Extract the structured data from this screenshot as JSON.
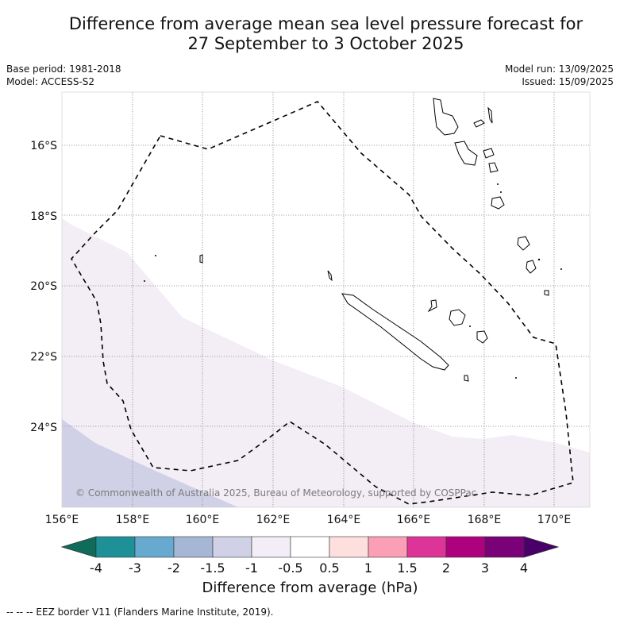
{
  "title": {
    "line1": "Difference from average mean sea level pressure forecast for",
    "line2": "27 September to 3 October 2025"
  },
  "meta": {
    "base_period": "Base period: 1981-2018",
    "model": "Model: ACCESS-S2",
    "model_run": "Model run: 13/09/2025",
    "issued": "Issued: 15/09/2025"
  },
  "map": {
    "lat_labels": [
      "16°S",
      "18°S",
      "20°S",
      "22°S",
      "24°S"
    ],
    "lon_labels": [
      "156°E",
      "158°E",
      "160°E",
      "162°E",
      "164°E",
      "166°E",
      "168°E",
      "170°E"
    ],
    "copyright": "© Commonwealth of Australia 2025, Bureau of Meteorology, supported by COSPPac"
  },
  "colorbar": {
    "title": "Difference from average (hPa)",
    "ticks": [
      "-4",
      "-3",
      "-2",
      "-1.5",
      "-1",
      "-0.5",
      "0.5",
      "1",
      "1.5",
      "2",
      "3",
      "4"
    ],
    "colors": [
      "#1e9098",
      "#67a9cf",
      "#a6b7d6",
      "#d0d1e6",
      "#f2edf6",
      "#ffffff",
      "#fde0dd",
      "#fa9fb5",
      "#dd3497",
      "#ae017e",
      "#7a0177"
    ],
    "under_color": "#0f6b5a",
    "over_color": "#49006a"
  },
  "footnote": "-- -- -- EEZ border V11 (Flanders Marine Institute, 2019)."
}
